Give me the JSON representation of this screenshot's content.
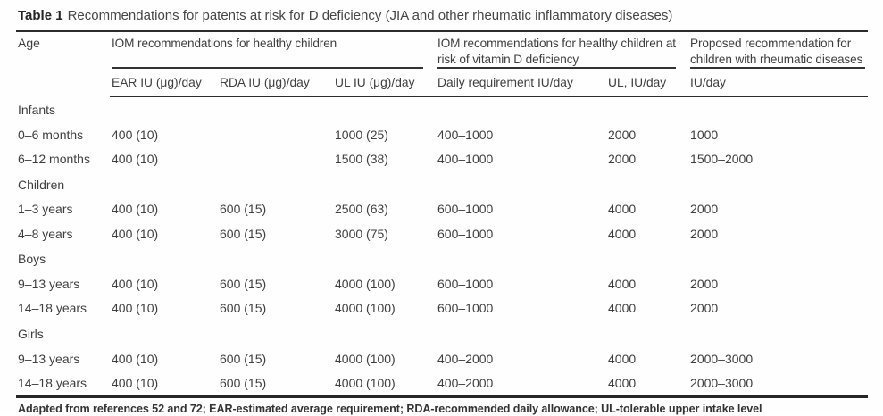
{
  "caption": {
    "label": "Table 1",
    "text": "Recommendations for patents at risk for D deficiency (JIA and other rheumatic inflammatory diseases)"
  },
  "table": {
    "age_header": "Age",
    "groups": [
      {
        "label": "IOM recommendations for healthy children",
        "subcols": [
          "EAR IU (μg)/day",
          "RDA IU (μg)/day",
          "UL IU (μg)/day"
        ]
      },
      {
        "label": "IOM recommendations for healthy children at risk of vitamin D deficiency",
        "subcols": [
          "Daily requirement IU/day",
          "UL, IU/day"
        ]
      },
      {
        "label": "Proposed recommendation for children with rheumatic diseases",
        "subcols": [
          "IU/day"
        ]
      }
    ],
    "rows": [
      {
        "section": true,
        "label": "Infants",
        "values": [
          "",
          "",
          "",
          "",
          "",
          ""
        ]
      },
      {
        "section": false,
        "label": "0–6 months",
        "values": [
          "400 (10)",
          "",
          "1000 (25)",
          "400–1000",
          "2000",
          "1000"
        ]
      },
      {
        "section": false,
        "label": "6–12 months",
        "values": [
          "400 (10)",
          "",
          "1500 (38)",
          "400–1000",
          "2000",
          "1500–2000"
        ]
      },
      {
        "section": true,
        "label": "Children",
        "values": [
          "",
          "",
          "",
          "",
          "",
          ""
        ]
      },
      {
        "section": false,
        "label": "1–3 years",
        "values": [
          "400 (10)",
          "600 (15)",
          "2500 (63)",
          "600–1000",
          "4000",
          "2000"
        ]
      },
      {
        "section": false,
        "label": "4–8 years",
        "values": [
          "400 (10)",
          "600 (15)",
          "3000 (75)",
          "600–1000",
          "4000",
          "2000"
        ]
      },
      {
        "section": true,
        "label": "Boys",
        "values": [
          "",
          "",
          "",
          "",
          "",
          ""
        ]
      },
      {
        "section": false,
        "label": "9–13 years",
        "values": [
          "400 (10)",
          "600 (15)",
          "4000 (100)",
          "600–1000",
          "4000",
          "2000"
        ]
      },
      {
        "section": false,
        "label": "14–18 years",
        "values": [
          "400 (10)",
          "600 (15)",
          "4000 (100)",
          "600–1000",
          "4000",
          "2000"
        ]
      },
      {
        "section": true,
        "label": "Girls",
        "values": [
          "",
          "",
          "",
          "",
          "",
          ""
        ]
      },
      {
        "section": false,
        "label": "9–13 years",
        "values": [
          "400 (10)",
          "600 (15)",
          "4000 (100)",
          "400–2000",
          "4000",
          "2000–3000"
        ]
      },
      {
        "section": false,
        "label": "14–18 years",
        "values": [
          "400 (10)",
          "600 (15)",
          "4000 (100)",
          "400–2000",
          "4000",
          "2000–3000"
        ]
      }
    ],
    "footnote": "Adapted from references 52 and 72; EAR-estimated average requirement; RDA-recommended daily allowance; UL-tolerable upper intake level"
  },
  "colors": {
    "background": "#fefefe",
    "text": "#3f3f3f",
    "rule": "#2b2b2b"
  }
}
